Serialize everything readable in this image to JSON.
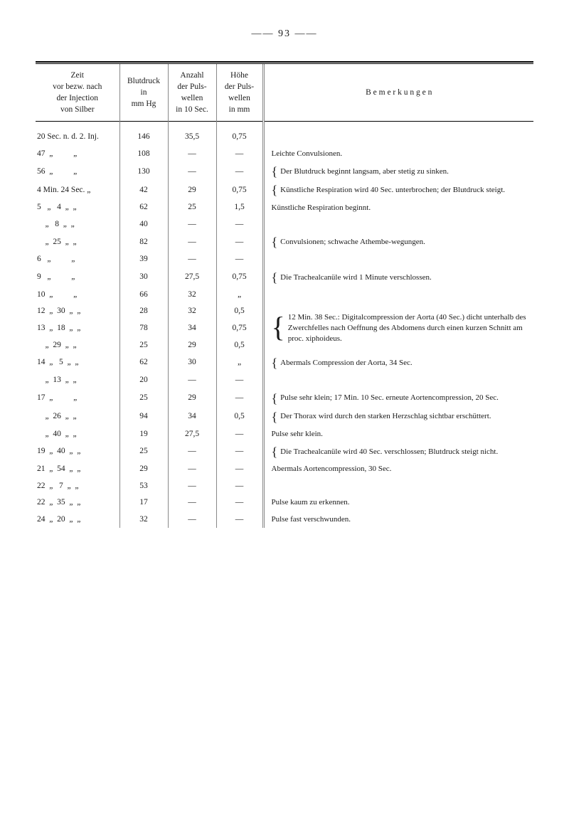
{
  "page_number": "93",
  "headers": {
    "zeit": "Zeit\nvor bezw. nach\nder Injection\nvon Silber",
    "blutdruck": "Blutdruck\nin\nmm Hg",
    "anzahl": "Anzahl\nder Puls-\nwellen\nin 10 Sec.",
    "hohe": "Höhe\nder Puls-\nwellen\nin mm",
    "bemerkungen": "B e m e r k u n g e n"
  },
  "rows": [
    {
      "zeit": "20 Sec. n. d. 2. Inj.",
      "blut": "146",
      "anzahl": "35,5",
      "hohe": "0,75",
      "bem": ""
    },
    {
      "zeit": "47  „          „",
      "blut": "108",
      "anzahl": "—",
      "hohe": "—",
      "bem": "Leichte Convulsionen.",
      "brace": false
    },
    {
      "zeit": "56  „          „",
      "blut": "130",
      "anzahl": "—",
      "hohe": "—",
      "bem": "Der Blutdruck beginnt langsam, aber stetig zu sinken.",
      "brace": true
    },
    {
      "zeit": "4 Min. 24 Sec. „",
      "blut": "42",
      "anzahl": "29",
      "hohe": "0,75",
      "bem": "Künstliche Respiration wird 40 Sec. unterbrochen; der Blutdruck steigt.",
      "brace": true
    },
    {
      "zeit": "5   „   4  „  „",
      "blut": "62",
      "anzahl": "25",
      "hohe": "1,5",
      "bem": "Künstliche Respiration beginnt."
    },
    {
      "zeit": "    „   8  „  „",
      "blut": "40",
      "anzahl": "—",
      "hohe": "—",
      "bem": ""
    },
    {
      "zeit": "    „  25  „  „",
      "blut": "82",
      "anzahl": "—",
      "hohe": "—",
      "bem": "Convulsionen; schwache Athembe-wegungen.",
      "brace": true
    },
    {
      "zeit": "6   „          „",
      "blut": "39",
      "anzahl": "—",
      "hohe": "—",
      "bem": ""
    },
    {
      "zeit": "9   „          „",
      "blut": "30",
      "anzahl": "27,5",
      "hohe": "0,75",
      "bem": "Die Trachealcanüle wird 1 Minute verschlossen.",
      "brace": true
    },
    {
      "zeit": "10  „          „",
      "blut": "66",
      "anzahl": "32",
      "hohe": "„",
      "bem": ""
    },
    {
      "zeit": "12  „  30  „  „",
      "blut": "28",
      "anzahl": "32",
      "hohe": "0,5",
      "bem": "12 Min. 38 Sec.: Digitalcompression der Aorta (40 Sec.) dicht unterhalb des Zwerchfelles nach Oeffnung des Abdomens durch einen kurzen Schnitt am proc. xiphoideus.",
      "brace": true,
      "rowspan": 3
    },
    {
      "zeit": "13  „  18  „  „",
      "blut": "78",
      "anzahl": "34",
      "hohe": "0,75",
      "skip_bem": true
    },
    {
      "zeit": "    „  29  „  „",
      "blut": "25",
      "anzahl": "29",
      "hohe": "0,5",
      "skip_bem": true
    },
    {
      "zeit": "14  „   5  „  „",
      "blut": "62",
      "anzahl": "30",
      "hohe": "„",
      "bem": "Abermals Compression der Aorta, 34 Sec.",
      "brace": true
    },
    {
      "zeit": "    „  13  „  „",
      "blut": "20",
      "anzahl": "—",
      "hohe": "—",
      "bem": ""
    },
    {
      "zeit": "17  „          „",
      "blut": "25",
      "anzahl": "29",
      "hohe": "—",
      "bem": "Pulse sehr klein; 17 Min. 10 Sec. erneute Aortencompression, 20 Sec.",
      "brace": true
    },
    {
      "zeit": "    „  26  „  „",
      "blut": "94",
      "anzahl": "34",
      "hohe": "0,5",
      "bem": "Der Thorax wird durch den starken Herzschlag sichtbar erschüttert.",
      "brace": true
    },
    {
      "zeit": "    „  40  „  „",
      "blut": "19",
      "anzahl": "27,5",
      "hohe": "—",
      "bem": "Pulse sehr klein."
    },
    {
      "zeit": "19  „  40  „  „",
      "blut": "25",
      "anzahl": "—",
      "hohe": "—",
      "bem": "Die Trachealcanüle wird 40 Sec. verschlossen; Blutdruck steigt nicht.",
      "brace": true
    },
    {
      "zeit": "21  „  54  „  „",
      "blut": "29",
      "anzahl": "—",
      "hohe": "—",
      "bem": "Abermals Aortencompression, 30 Sec."
    },
    {
      "zeit": "22  „   7  „  „",
      "blut": "53",
      "anzahl": "—",
      "hohe": "—",
      "bem": ""
    },
    {
      "zeit": "22  „  35  „  „",
      "blut": "17",
      "anzahl": "—",
      "hohe": "—",
      "bem": "Pulse kaum zu erkennen."
    },
    {
      "zeit": "24  „  20  „  „",
      "blut": "32",
      "anzahl": "—",
      "hohe": "—",
      "bem": "Pulse fast verschwunden."
    }
  ]
}
